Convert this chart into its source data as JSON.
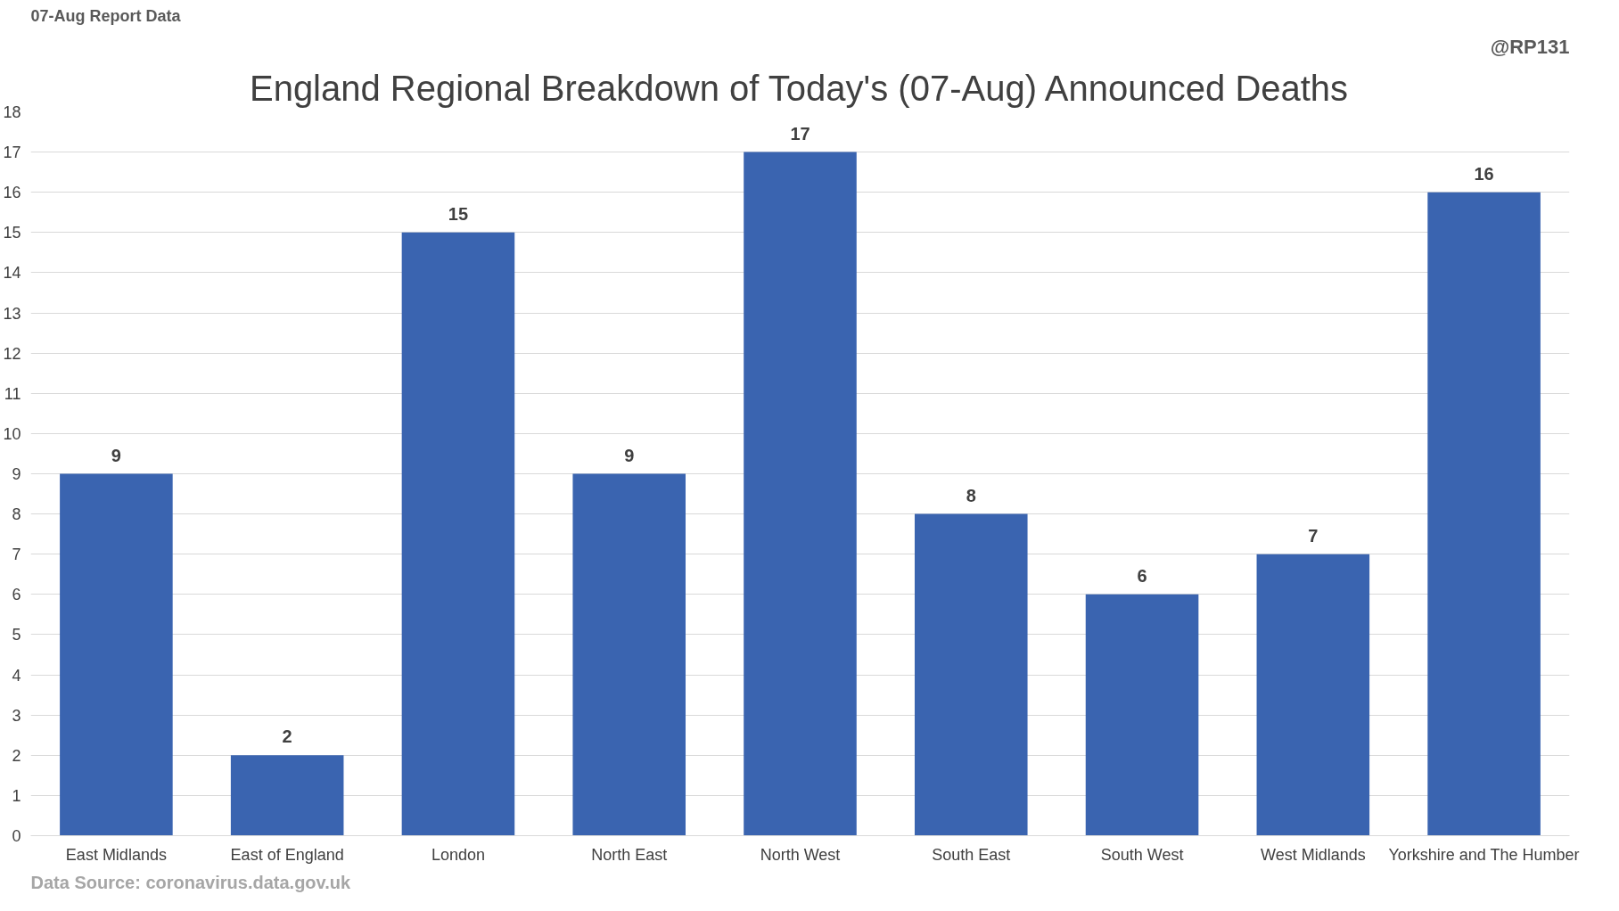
{
  "chart_data": {
    "type": "bar",
    "title": "England Regional Breakdown of Today's (07-Aug) Announced Deaths",
    "annotations": [
      "07-Aug Report Data",
      "@RP131",
      "Data Source: coronavirus.data.gov.uk"
    ],
    "categories": [
      "East Midlands",
      "East of England",
      "London",
      "North East",
      "North West",
      "South East",
      "South West",
      "West Midlands",
      "Yorkshire and The Humber"
    ],
    "values": [
      9,
      2,
      15,
      9,
      17,
      8,
      6,
      7,
      16
    ],
    "color": "#3a64b0",
    "ylim": [
      0,
      18
    ],
    "yticks": [
      0,
      1,
      2,
      3,
      4,
      5,
      6,
      7,
      8,
      9,
      10,
      11,
      12,
      13,
      14,
      15,
      16,
      17,
      18
    ],
    "grid": "y",
    "data_labels": true
  }
}
